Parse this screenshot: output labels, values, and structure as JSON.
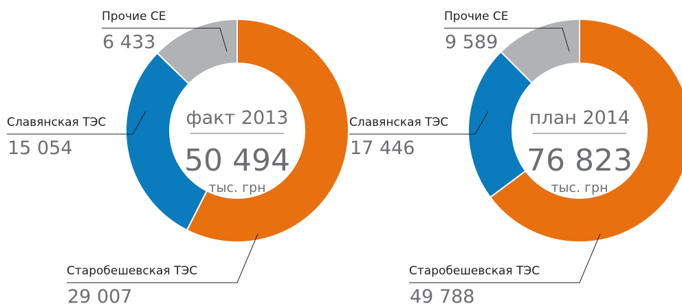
{
  "chart_data": [
    {
      "type": "donut",
      "title": "факт 2013",
      "total": 50494,
      "total_label": "50 494",
      "unit": "тыс. грн",
      "categories": [
        "Старобешевская ТЭС",
        "Славянская ТЭС",
        "Прочие СЕ"
      ],
      "values": [
        29007,
        15054,
        6433
      ],
      "value_labels": [
        "29 007",
        "15 054",
        "6 433"
      ],
      "colors": [
        "#e8700f",
        "#0a7bbd",
        "#b1b2b3"
      ]
    },
    {
      "type": "donut",
      "title": "план 2014",
      "total": 76823,
      "total_label": "76 823",
      "unit": "тыс. грн",
      "categories": [
        "Старобешевская ТЭС",
        "Славянская ТЭС",
        "Прочие СЕ"
      ],
      "values": [
        49788,
        17446,
        9589
      ],
      "value_labels": [
        "49 788",
        "17 446",
        "9 589"
      ],
      "colors": [
        "#e8700f",
        "#0a7bbd",
        "#b1b2b3"
      ]
    }
  ]
}
